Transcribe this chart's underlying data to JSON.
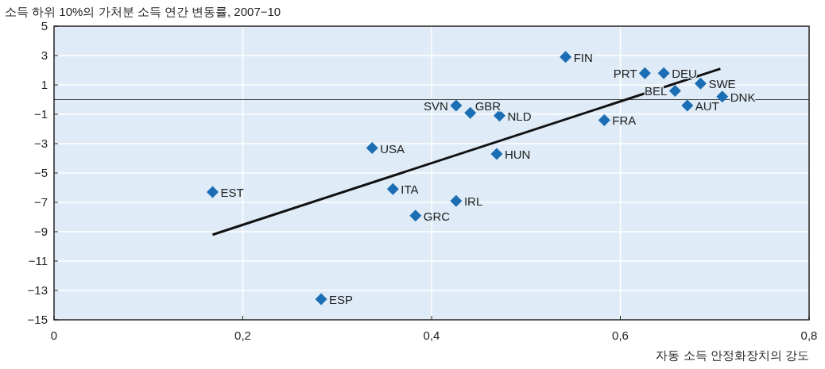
{
  "chart_data": {
    "type": "scatter",
    "title": "소득 하위 10%의 가처분 소득 연간 변동률, 2007−10",
    "xlabel": "자동 소득 안정화장치의 강도",
    "xlim": [
      0,
      0.8
    ],
    "xticks": [
      {
        "value": 0,
        "label": "0"
      },
      {
        "value": 0.2,
        "label": "0,2"
      },
      {
        "value": 0.4,
        "label": "0,4"
      },
      {
        "value": 0.6,
        "label": "0,6"
      },
      {
        "value": 0.8,
        "label": "0,8"
      }
    ],
    "ylim": [
      -15,
      5
    ],
    "yticks": [
      {
        "value": 5,
        "label": "5"
      },
      {
        "value": 3,
        "label": "3"
      },
      {
        "value": 1,
        "label": "1"
      },
      {
        "value": -1,
        "label": "−1"
      },
      {
        "value": -3,
        "label": "−3"
      },
      {
        "value": -5,
        "label": "−5"
      },
      {
        "value": -7,
        "label": "−7"
      },
      {
        "value": -9,
        "label": "−9"
      },
      {
        "value": -11,
        "label": "−11"
      },
      {
        "value": -13,
        "label": "−13"
      },
      {
        "value": -15,
        "label": "−15"
      }
    ],
    "grid": true,
    "marker": "diamond",
    "series": [
      {
        "color": "#1b6db4",
        "x": [
          0.542,
          0.626,
          0.646,
          0.685,
          0.658,
          0.708,
          0.671,
          0.426,
          0.441,
          0.472,
          0.583,
          0.337,
          0.469,
          0.168,
          0.359,
          0.426,
          0.383,
          0.283
        ],
        "values": [
          2.9,
          1.8,
          1.8,
          1.1,
          0.6,
          0.2,
          -0.4,
          -0.4,
          -0.9,
          -1.1,
          -1.4,
          -3.3,
          -3.7,
          -6.3,
          -6.1,
          -6.9,
          -7.9,
          -13.6
        ]
      },
      {
        "type": "line",
        "marker": "none",
        "color": "#111111",
        "x": [
          0.168,
          0.706
        ],
        "values": [
          -9.2,
          2.1
        ]
      }
    ],
    "ref_lines": [
      {
        "axis": "y",
        "value": 0,
        "color": "#444444"
      }
    ],
    "annotations": [
      {
        "text": "FIN",
        "x": 0.542,
        "y": 2.9
      },
      {
        "text": "PRT",
        "x": 0.626,
        "y": 1.8
      },
      {
        "text": "DEU",
        "x": 0.646,
        "y": 1.8
      },
      {
        "text": "SWE",
        "x": 0.685,
        "y": 1.1
      },
      {
        "text": "BEL",
        "x": 0.658,
        "y": 0.6
      },
      {
        "text": "DNK",
        "x": 0.708,
        "y": 0.2
      },
      {
        "text": "AUT",
        "x": 0.671,
        "y": -0.4
      },
      {
        "text": "SVN",
        "x": 0.426,
        "y": -0.4
      },
      {
        "text": "GBR",
        "x": 0.441,
        "y": -0.9
      },
      {
        "text": "NLD",
        "x": 0.472,
        "y": -1.1
      },
      {
        "text": "FRA",
        "x": 0.583,
        "y": -1.4
      },
      {
        "text": "USA",
        "x": 0.337,
        "y": -3.3
      },
      {
        "text": "HUN",
        "x": 0.469,
        "y": -3.7
      },
      {
        "text": "EST",
        "x": 0.168,
        "y": -6.3
      },
      {
        "text": "ITA",
        "x": 0.359,
        "y": -6.1
      },
      {
        "text": "IRL",
        "x": 0.426,
        "y": -6.9
      },
      {
        "text": "GRC",
        "x": 0.383,
        "y": -7.9
      },
      {
        "text": "ESP",
        "x": 0.283,
        "y": -13.6
      }
    ]
  }
}
